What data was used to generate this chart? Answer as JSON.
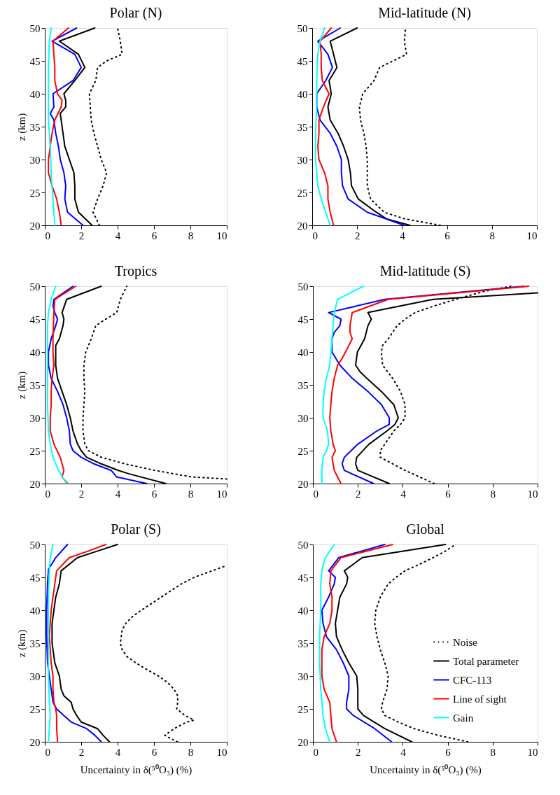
{
  "chart_data": [
    {
      "type": "line",
      "title": "Polar (N)",
      "ylabel": "z (km)",
      "xlim": [
        0,
        10
      ],
      "ylim": [
        20,
        50
      ],
      "xticks": [
        0,
        2,
        4,
        6,
        8,
        10
      ],
      "yticks": [
        20,
        25,
        30,
        35,
        40,
        45,
        50
      ],
      "grid": false,
      "legend": false,
      "series": [
        {
          "color": "#000000",
          "line_style": "dotted",
          "x": [
            3.0,
            2.65,
            2.9,
            3.2,
            3.4,
            3.1,
            2.9,
            2.7,
            2.55,
            2.5,
            2.45,
            2.8,
            2.9,
            3.4,
            4.25,
            4.15,
            4.0
          ],
          "values": [
            20,
            22,
            24,
            26,
            28,
            30,
            32,
            34,
            36,
            38,
            40,
            42,
            44,
            45,
            46,
            48,
            50
          ]
        },
        {
          "color": "#000000",
          "line_style": "solid",
          "x": [
            2.6,
            1.85,
            1.65,
            1.65,
            1.6,
            1.35,
            1.1,
            1.0,
            0.9,
            0.85,
            1.15,
            1.15,
            1.05,
            1.65,
            2.2,
            1.85,
            0.8,
            2.75
          ],
          "values": [
            20,
            22,
            24,
            26,
            28,
            30,
            32,
            34,
            36,
            37,
            38,
            39,
            40,
            42,
            44,
            46,
            48,
            50
          ]
        },
        {
          "color": "#0000ff",
          "line_style": "solid",
          "x": [
            2.1,
            1.25,
            1.1,
            1.15,
            1.05,
            0.85,
            0.75,
            0.6,
            0.5,
            0.3,
            0.5,
            0.45,
            1.55,
            2.0,
            1.65,
            0.4,
            1.75
          ],
          "values": [
            20,
            22,
            24,
            26,
            28,
            30,
            32,
            34,
            36,
            37,
            38,
            40,
            42,
            44,
            46,
            48,
            50
          ]
        },
        {
          "color": "#ff0000",
          "line_style": "solid",
          "x": [
            0.9,
            0.8,
            0.65,
            0.4,
            0.2,
            0.2,
            0.3,
            0.4,
            0.55,
            0.9,
            0.95,
            0.7,
            0.55,
            0.55,
            0.5,
            0.45,
            1.3
          ],
          "values": [
            20,
            22,
            24,
            26,
            28,
            30,
            32,
            34,
            36,
            38,
            39,
            40,
            42,
            44,
            46,
            48,
            50
          ]
        },
        {
          "color": "#00ffff",
          "line_style": "solid",
          "x": [
            0.55,
            0.45,
            0.35,
            0.3,
            0.2,
            0.2,
            0.2,
            0.25,
            0.35
          ],
          "values": [
            20,
            24,
            28,
            32,
            36,
            40,
            44,
            48,
            50
          ]
        }
      ]
    },
    {
      "type": "line",
      "title": "Mid-latitude (N)",
      "xlim": [
        0,
        10
      ],
      "ylim": [
        20,
        50
      ],
      "xticks": [
        0,
        2,
        4,
        6,
        8,
        10
      ],
      "yticks": [
        20,
        25,
        30,
        35,
        40,
        45,
        50
      ],
      "grid": false,
      "legend": false,
      "series": [
        {
          "color": "#000000",
          "line_style": "dotted",
          "x": [
            5.7,
            4.1,
            3.2,
            2.6,
            2.45,
            2.45,
            2.45,
            2.4,
            2.3,
            2.15,
            2.1,
            2.25,
            2.75,
            3.0,
            3.6,
            4.2,
            4.1,
            4.15
          ],
          "values": [
            20,
            21,
            22,
            24,
            26,
            28,
            30,
            32,
            34,
            36,
            38,
            40,
            42,
            44,
            45,
            46,
            48,
            50
          ]
        },
        {
          "color": "#000000",
          "line_style": "solid",
          "x": [
            4.35,
            3.3,
            2.85,
            2.05,
            1.75,
            1.7,
            1.6,
            1.4,
            1.15,
            0.8,
            0.7,
            0.85,
            0.75,
            1.1,
            0.95,
            0.8,
            2.0
          ],
          "values": [
            20,
            21,
            22,
            24,
            26,
            28,
            30,
            32,
            34,
            36,
            38,
            40,
            42,
            44,
            46,
            48,
            50
          ]
        },
        {
          "color": "#0000ff",
          "line_style": "solid",
          "x": [
            4.1,
            2.45,
            1.6,
            1.35,
            1.3,
            1.3,
            1.1,
            0.8,
            0.35,
            0.2,
            0.2,
            0.6,
            0.9,
            0.7,
            0.25,
            1.25
          ],
          "values": [
            20,
            22,
            24,
            26,
            28,
            30,
            32,
            34,
            36,
            38,
            40,
            42,
            44,
            46,
            48,
            50
          ]
        },
        {
          "color": "#ff0000",
          "line_style": "solid",
          "x": [
            0.95,
            0.8,
            0.7,
            0.7,
            0.55,
            0.3,
            0.25,
            0.3,
            0.3,
            0.5,
            0.75,
            0.45,
            0.4,
            0.4,
            0.35,
            0.85
          ],
          "values": [
            20,
            22,
            24,
            26,
            28,
            30,
            32,
            34,
            36,
            38,
            40,
            42,
            44,
            46,
            48,
            50
          ]
        },
        {
          "color": "#00ffff",
          "line_style": "solid",
          "x": [
            0.8,
            0.6,
            0.4,
            0.25,
            0.2,
            0.15,
            0.15,
            0.2,
            0.2,
            0.25,
            0.35,
            0.55
          ],
          "values": [
            20,
            22,
            24,
            26,
            28,
            30,
            34,
            38,
            42,
            46,
            48,
            50
          ]
        }
      ]
    },
    {
      "type": "line",
      "title": "Tropics",
      "ylabel": "z (km)",
      "xlim": [
        0,
        10
      ],
      "ylim": [
        20,
        50
      ],
      "xticks": [
        0,
        2,
        4,
        6,
        8,
        10
      ],
      "yticks": [
        20,
        25,
        30,
        35,
        40,
        45,
        50
      ],
      "grid": false,
      "legend": false,
      "series": [
        {
          "color": "#000000",
          "line_style": "dotted",
          "x": [
            10,
            8.1,
            6.05,
            4.4,
            3.1,
            2.4,
            2.2,
            2.1,
            2.1,
            2.15,
            2.2,
            2.15,
            2.15,
            2.25,
            2.55,
            2.8,
            3.35,
            3.95,
            4.15,
            4.5
          ],
          "values": [
            20.7,
            21,
            22,
            23,
            24,
            25,
            26,
            28,
            30,
            32,
            34,
            36,
            38,
            40,
            42,
            44,
            45,
            46,
            48,
            50
          ]
        },
        {
          "color": "#000000",
          "line_style": "solid",
          "x": [
            6.65,
            4.6,
            4.05,
            3.1,
            2.3,
            2.0,
            1.8,
            1.55,
            1.4,
            1.2,
            0.95,
            0.7,
            0.6,
            0.6,
            0.6,
            0.8,
            1.0,
            1.05,
            0.95,
            1.2,
            3.1
          ],
          "values": [
            20,
            21.5,
            22,
            23,
            24,
            25,
            26,
            28,
            30,
            32,
            34,
            36,
            38,
            40,
            41,
            42,
            44,
            45,
            46,
            48,
            50
          ]
        },
        {
          "color": "#0000ff",
          "line_style": "solid",
          "x": [
            5.6,
            3.95,
            3.65,
            2.7,
            2.0,
            1.55,
            1.4,
            1.35,
            1.2,
            1.0,
            0.7,
            0.35,
            0.2,
            0.2,
            0.35,
            0.6,
            0.7,
            0.55,
            0.45,
            0.5,
            1.55
          ],
          "values": [
            20,
            21,
            22,
            23,
            24,
            25,
            26,
            28,
            30,
            32,
            34,
            36,
            38,
            40,
            42,
            44,
            45,
            46,
            47,
            48,
            50
          ]
        },
        {
          "color": "#ff0000",
          "line_style": "solid",
          "x": [
            1.25,
            0.95,
            1.05,
            0.85,
            0.5,
            0.3,
            0.3,
            0.35,
            0.35,
            0.4,
            0.5,
            0.45,
            0.45,
            0.5,
            0.55,
            1.7
          ],
          "values": [
            20,
            21,
            22,
            24,
            26,
            28,
            30,
            32,
            34,
            36,
            38,
            40,
            42,
            46,
            48,
            50
          ]
        },
        {
          "color": "#00ffff",
          "line_style": "solid",
          "x": [
            1.2,
            0.75,
            0.45,
            0.3,
            0.2,
            0.15,
            0.15,
            0.15,
            0.15,
            0.2,
            0.35,
            0.6
          ],
          "values": [
            20,
            22,
            24,
            26,
            28,
            32,
            36,
            40,
            44,
            46,
            48,
            50
          ]
        }
      ]
    },
    {
      "type": "line",
      "title": "Mid-latitude (S)",
      "xlim": [
        0,
        10
      ],
      "ylim": [
        20,
        50
      ],
      "xticks": [
        0,
        2,
        4,
        6,
        8,
        10
      ],
      "yticks": [
        20,
        25,
        30,
        35,
        40,
        45,
        50
      ],
      "grid": false,
      "legend": false,
      "series": [
        {
          "color": "#000000",
          "line_style": "dotted",
          "x": [
            5.4,
            4.1,
            3.0,
            3.0,
            3.2,
            3.6,
            3.9,
            4.1,
            4.1,
            3.9,
            3.55,
            3.1,
            3.05,
            3.1,
            3.35,
            3.75,
            4.1,
            4.55,
            5.4,
            6.35,
            7.6,
            8.8
          ],
          "values": [
            20,
            22,
            24,
            25,
            26,
            28,
            29,
            30,
            32,
            34,
            36,
            38,
            40,
            41,
            42,
            44,
            45,
            46,
            47,
            48,
            49.2,
            50
          ]
        },
        {
          "color": "#000000",
          "line_style": "solid",
          "x": [
            3.4,
            2.0,
            1.9,
            1.95,
            2.5,
            3.3,
            3.65,
            3.8,
            3.6,
            3.05,
            2.4,
            2.1,
            1.9,
            1.98,
            2.3,
            2.45,
            2.6,
            2.45,
            5.35,
            10
          ],
          "values": [
            20,
            22,
            23,
            24,
            26,
            28,
            29,
            30,
            32,
            34,
            36,
            37,
            38,
            40,
            42,
            44,
            45,
            46,
            48,
            49
          ]
        },
        {
          "color": "#0000ff",
          "line_style": "solid",
          "x": [
            2.7,
            1.4,
            1.3,
            1.4,
            2.0,
            2.85,
            3.4,
            3.4,
            3.05,
            2.45,
            1.75,
            1.2,
            0.85,
            0.85,
            0.95,
            1.2,
            1.25,
            0.7,
            3.2,
            9.4
          ],
          "values": [
            20,
            22,
            23,
            24,
            26,
            28,
            29,
            30,
            32,
            34,
            36,
            38,
            40,
            42,
            43,
            44,
            45,
            46,
            48,
            50
          ]
        },
        {
          "color": "#ff0000",
          "line_style": "solid",
          "x": [
            1.25,
            0.95,
            0.85,
            1.0,
            0.9,
            0.8,
            0.75,
            0.8,
            0.85,
            0.95,
            1.1,
            1.3,
            1.45,
            1.6,
            1.75,
            1.65,
            1.65,
            1.75,
            3.35,
            9.6
          ],
          "values": [
            20,
            22,
            24,
            25,
            26,
            28,
            30,
            32,
            34,
            36,
            38,
            39,
            40,
            41,
            42,
            43,
            44,
            46,
            48,
            50
          ]
        },
        {
          "color": "#00ffff",
          "line_style": "solid",
          "x": [
            0.4,
            0.4,
            0.45,
            0.6,
            0.7,
            0.65,
            0.45,
            0.45,
            0.5,
            0.6,
            0.75,
            0.8,
            0.85,
            0.9,
            0.95,
            1.1,
            2.25
          ],
          "values": [
            20,
            22,
            24,
            25,
            26,
            28,
            30,
            32,
            34,
            36,
            38,
            40,
            42,
            44,
            46,
            48,
            50
          ]
        }
      ]
    },
    {
      "type": "line",
      "title": "Polar (S)",
      "ylabel": "z (km)",
      "xlabel": "Uncertainty in δ(⁵⁰O₃) (%)",
      "xlim": [
        0,
        10
      ],
      "ylim": [
        20,
        50
      ],
      "xticks": [
        0,
        2,
        4,
        6,
        8,
        10
      ],
      "yticks": [
        20,
        25,
        30,
        35,
        40,
        45,
        50
      ],
      "grid": false,
      "legend": false,
      "series": [
        {
          "color": "#000000",
          "line_style": "dotted",
          "x": [
            7.3,
            6.9,
            6.6,
            7.1,
            7.8,
            8.2,
            7.7,
            7.25,
            7.3,
            7.3,
            7.1,
            6.75,
            6.25,
            5.6,
            5.0,
            4.5,
            4.25,
            4.15,
            4.2,
            4.25,
            4.45,
            4.8,
            5.3,
            5.85,
            6.4,
            6.95,
            7.5,
            8.2,
            10
          ],
          "values": [
            20,
            20.5,
            21,
            22,
            23,
            23.3,
            24,
            25,
            26,
            27,
            28,
            29,
            30,
            31,
            32,
            33,
            34,
            35,
            36,
            37,
            38,
            39,
            40,
            41,
            42,
            43,
            44,
            45,
            46.8
          ]
        },
        {
          "color": "#000000",
          "line_style": "solid",
          "x": [
            3.55,
            3.2,
            2.9,
            2.0,
            1.75,
            1.55,
            1.45,
            1.05,
            0.9,
            0.8,
            0.55,
            0.45,
            0.4,
            0.4,
            0.4,
            0.5,
            0.6,
            0.8,
            0.9,
            1.8,
            2.9,
            4.0
          ],
          "values": [
            20,
            21,
            22,
            23,
            24,
            25,
            26,
            27,
            28,
            30,
            32,
            34,
            35,
            36,
            38,
            40,
            42,
            44,
            46,
            48,
            49,
            50
          ]
        },
        {
          "color": "#0000ff",
          "line_style": "solid",
          "x": [
            3.1,
            2.75,
            2.3,
            1.45,
            1.05,
            0.65,
            0.45,
            0.35,
            0.25,
            0.15,
            0.1,
            0.1,
            0.15,
            0.2,
            0.6,
            1.25
          ],
          "values": [
            20,
            21,
            22,
            23,
            24,
            25,
            26,
            28,
            30,
            32,
            36,
            40,
            44,
            46.2,
            48,
            50
          ]
        },
        {
          "color": "#ff0000",
          "line_style": "solid",
          "x": [
            0.7,
            0.65,
            0.65,
            0.6,
            0.5,
            0.45,
            0.45,
            0.35,
            0.3,
            0.25,
            0.3,
            0.35,
            0.45,
            0.55,
            0.65,
            1.35,
            2.4,
            3.35
          ],
          "values": [
            20,
            22,
            24,
            25,
            26,
            28,
            30,
            32,
            34,
            36,
            38,
            40,
            42,
            44,
            46,
            48,
            49,
            50
          ]
        },
        {
          "color": "#00ffff",
          "line_style": "solid",
          "x": [
            0.2,
            0.25,
            0.3,
            0.25,
            0.2,
            0.2,
            0.2,
            0.2,
            0.25,
            0.3,
            0.45
          ],
          "values": [
            20,
            22,
            24,
            26,
            30,
            34,
            38,
            42,
            46,
            48,
            50
          ]
        }
      ]
    },
    {
      "type": "line",
      "title": "Global",
      "xlabel": "Uncertainty in δ(⁵⁰O₃) (%)",
      "xlim": [
        0,
        10
      ],
      "ylim": [
        20,
        50
      ],
      "xticks": [
        0,
        2,
        4,
        6,
        8,
        10
      ],
      "yticks": [
        20,
        25,
        30,
        35,
        40,
        45,
        50
      ],
      "grid": false,
      "legend": "bottom right",
      "series": [
        {
          "name": "Noise",
          "color": "#000000",
          "line_style": "dotted",
          "x": [
            6.9,
            5.55,
            4.5,
            3.8,
            3.2,
            3.05,
            3.1,
            3.3,
            3.35,
            3.2,
            3.0,
            2.85,
            2.75,
            2.8,
            3.0,
            3.35,
            3.7,
            4.1,
            4.75,
            5.35,
            5.9,
            6.35
          ],
          "values": [
            20,
            21,
            22,
            23,
            24,
            25,
            26,
            28,
            30,
            32,
            34,
            36,
            38,
            40,
            42,
            44,
            45,
            46,
            47,
            48,
            49,
            50
          ]
        },
        {
          "name": "Total parameter",
          "color": "#000000",
          "line_style": "solid",
          "x": [
            4.4,
            3.2,
            2.25,
            2.0,
            2.0,
            2.0,
            1.95,
            1.6,
            1.3,
            1.05,
            1.0,
            1.1,
            1.2,
            1.5,
            1.55,
            1.4,
            2.2,
            5.9
          ],
          "values": [
            20,
            22,
            24,
            25,
            26,
            28,
            30,
            32,
            34,
            36,
            38,
            40,
            42,
            44,
            45,
            46,
            48,
            50
          ]
        },
        {
          "name": "CFC-113",
          "color": "#0000ff",
          "line_style": "solid",
          "x": [
            3.5,
            2.75,
            1.8,
            1.5,
            1.5,
            1.6,
            1.6,
            1.35,
            1.05,
            0.6,
            0.45,
            0.4,
            0.7,
            0.95,
            1.0,
            0.7,
            1.15,
            3.2
          ],
          "values": [
            20,
            22,
            24,
            25,
            26,
            28,
            30,
            32,
            34,
            36,
            38,
            40,
            42,
            44,
            45,
            46,
            48,
            50
          ]
        },
        {
          "name": "Line of sight",
          "color": "#ff0000",
          "line_style": "solid",
          "x": [
            1.05,
            0.85,
            0.8,
            0.75,
            0.5,
            0.4,
            0.4,
            0.4,
            0.5,
            0.75,
            0.85,
            0.85,
            0.75,
            0.8,
            1.25,
            3.55
          ],
          "values": [
            20,
            22,
            24,
            26,
            28,
            30,
            32,
            34,
            36,
            38,
            40,
            42,
            44,
            46,
            48,
            50
          ]
        },
        {
          "name": "Gain",
          "color": "#00ffff",
          "line_style": "solid",
          "x": [
            0.75,
            0.55,
            0.45,
            0.4,
            0.35,
            0.3,
            0.3,
            0.35,
            0.35,
            0.4,
            0.55,
            0.95
          ],
          "values": [
            20,
            22,
            24,
            26,
            28,
            32,
            36,
            40,
            44,
            46,
            48,
            50
          ]
        }
      ]
    }
  ]
}
